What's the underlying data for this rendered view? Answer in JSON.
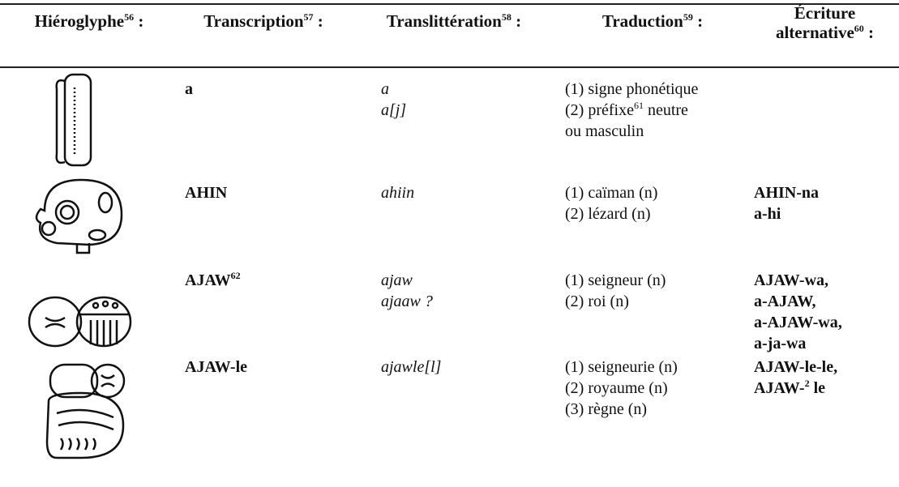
{
  "header": [
    {
      "text": "Hiéroglyphe",
      "note": "56",
      "after": " :"
    },
    {
      "text": "Transcription",
      "note": "57",
      "after": " :"
    },
    {
      "text": "Translittération",
      "note": "58",
      "after": " :"
    },
    {
      "text": "Traduction",
      "note": "59",
      "after": " :"
    },
    {
      "text": "Écriture alternative",
      "note": "60",
      "after": " :"
    }
  ],
  "rows": [
    {
      "transcription": [
        {
          "text": "a"
        }
      ],
      "transliteration": [
        {
          "text": "a"
        },
        {
          "text": "a[j]"
        }
      ],
      "translation": [
        {
          "text": "(1) signe phonétique"
        },
        {
          "text": "(2) préfixe",
          "note": "61",
          "after": " neutre"
        },
        {
          "text": "ou masculin"
        }
      ],
      "alternatives": []
    },
    {
      "transcription": [
        {
          "text": "AHIN"
        }
      ],
      "transliteration": [
        {
          "text": "ahiin"
        }
      ],
      "translation": [
        {
          "text": "(1) caïman (n)"
        },
        {
          "text": "(2) lézard (n)"
        }
      ],
      "alternatives": [
        {
          "text": "AHIN-na"
        },
        {
          "text": "a-hi"
        }
      ]
    },
    {
      "transcription": [
        {
          "text": "AJAW",
          "note": "62"
        }
      ],
      "transliteration": [
        {
          "text": "ajaw"
        },
        {
          "text": "ajaaw ?"
        }
      ],
      "translation": [
        {
          "text": "(1) seigneur (n)"
        },
        {
          "text": "(2) roi (n)"
        }
      ],
      "alternatives": [
        {
          "text": "AJAW-wa,"
        },
        {
          "text": "a-AJAW,"
        },
        {
          "text": "a-AJAW-wa,"
        },
        {
          "text": "a-ja-wa"
        }
      ]
    },
    {
      "transcription": [
        {
          "text": "AJAW-le"
        }
      ],
      "transliteration": [
        {
          "text": "ajawle[l]"
        }
      ],
      "translation": [
        {
          "text": "(1) seigneurie (n)"
        },
        {
          "text": "(2) royaume (n)"
        },
        {
          "text": "(3) règne (n)"
        }
      ],
      "alternatives": [
        {
          "text": "AJAW-le-le,"
        },
        {
          "text": "AJAW-",
          "note": "2",
          "after": " le"
        }
      ]
    }
  ]
}
